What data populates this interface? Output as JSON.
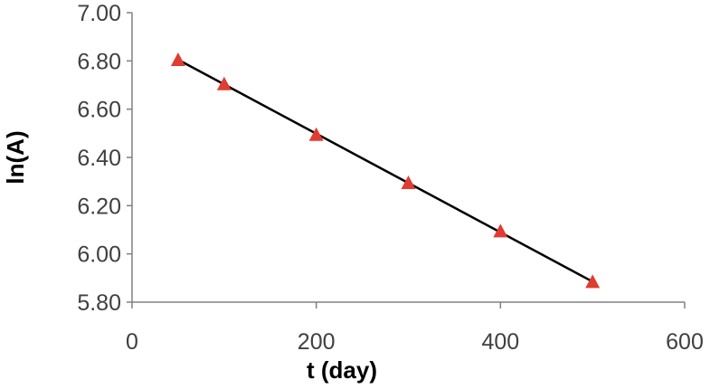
{
  "chart_data": {
    "type": "scatter",
    "title": "",
    "xlabel": "t (day)",
    "ylabel": "ln(A)",
    "xlim": [
      0,
      600
    ],
    "ylim": [
      5.8,
      7.0
    ],
    "x_ticks": [
      0,
      200,
      400,
      600
    ],
    "y_ticks": [
      5.8,
      6.0,
      6.2,
      6.4,
      6.6,
      6.8,
      7.0
    ],
    "x_tick_labels": [
      "0",
      "200",
      "400",
      "600"
    ],
    "y_tick_labels": [
      "5.80",
      "6.00",
      "6.20",
      "6.40",
      "6.60",
      "6.80",
      "7.00"
    ],
    "grid": false,
    "legend": "none",
    "series": [
      {
        "marker": "triangle",
        "color": "#e03c31",
        "x": [
          50,
          100,
          200,
          300,
          400,
          500
        ],
        "y": [
          6.8,
          6.7,
          6.49,
          6.29,
          6.09,
          5.88
        ]
      }
    ],
    "trendline": {
      "type": "linear",
      "color": "#000000",
      "x": [
        50,
        500
      ],
      "y": [
        6.805,
        5.885
      ]
    }
  }
}
